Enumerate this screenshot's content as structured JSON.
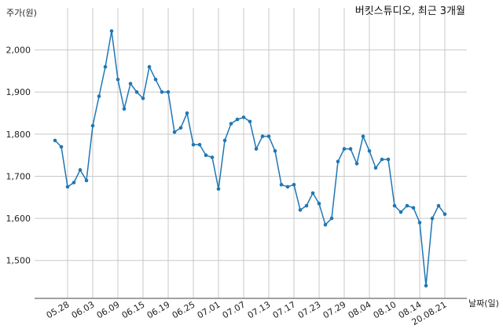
{
  "chart_data": {
    "type": "line",
    "title": "버킷스튜디오, 최근 3개월",
    "xlabel": "날짜(일)",
    "ylabel": "주가(원)",
    "ylim": [
      1410,
      2100
    ],
    "yticks": [
      1500,
      1600,
      1700,
      1800,
      1900,
      2000
    ],
    "ytick_labels": [
      "1,500",
      "1,600",
      "1,700",
      "1,800",
      "1,900",
      "2,000"
    ],
    "xtick_labels": [
      "05.28",
      "06.03",
      "06.09",
      "06.15",
      "06.19",
      "06.25",
      "07.01",
      "07.07",
      "07.13",
      "07.17",
      "07.23",
      "07.29",
      "08.04",
      "08.10",
      "08.14",
      "20.08.21"
    ],
    "xtick_indices": [
      2,
      6,
      10,
      14,
      18,
      22,
      26,
      30,
      34,
      38,
      42,
      46,
      50,
      54,
      58,
      62
    ],
    "grid": true,
    "color": "#1f77b4",
    "series": [
      {
        "values": [
          1785,
          1770,
          1675,
          1685,
          1715,
          1690,
          1820,
          1890,
          1960,
          2045,
          1930,
          1860,
          1920,
          1900,
          1885,
          1960,
          1930,
          1900,
          1900,
          1805,
          1815,
          1850,
          1775,
          1775,
          1750,
          1745,
          1670,
          1785,
          1825,
          1835,
          1840,
          1830,
          1765,
          1795,
          1795,
          1760,
          1680,
          1675,
          1680,
          1620,
          1630,
          1660,
          1635,
          1585,
          1600,
          1735,
          1765,
          1765,
          1730,
          1795,
          1760,
          1720,
          1740,
          1740,
          1630,
          1615,
          1630,
          1625,
          1590,
          1440,
          1600,
          1630,
          1610
        ]
      }
    ]
  }
}
